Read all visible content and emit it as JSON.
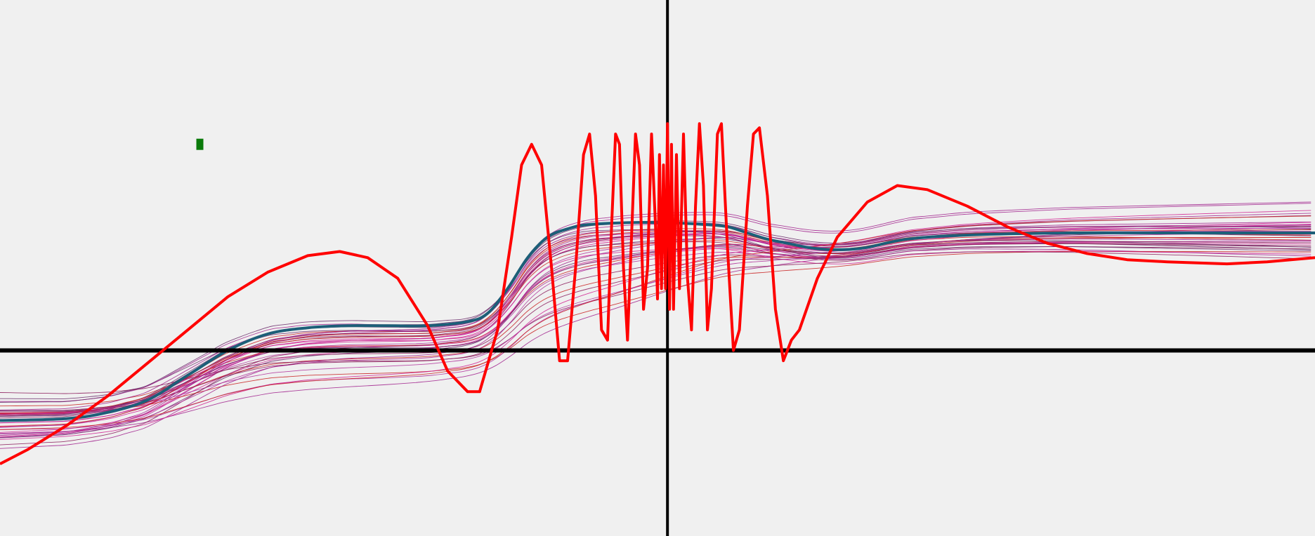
{
  "chart_data": {
    "type": "line",
    "title": "",
    "xlabel": "",
    "ylabel": "",
    "xlim": [
      -3.34,
      3.24
    ],
    "ylim": [
      -0.9,
      1.7
    ],
    "grid": false,
    "axes": {
      "color": "#000000",
      "x_axis_at": 0,
      "y_axis_at": 0
    },
    "marker": {
      "color": "#0a7a0a",
      "x": -2.34,
      "y": 1.0
    },
    "background": "#f0f0f0",
    "series": [
      {
        "role": "oscillating-function",
        "color": "#ff0000",
        "points": [
          [
            -3.34,
            -0.55
          ],
          [
            -3.2,
            -0.48
          ],
          [
            -3.0,
            -0.36
          ],
          [
            -2.8,
            -0.22
          ],
          [
            -2.6,
            -0.06
          ],
          [
            -2.4,
            0.1
          ],
          [
            -2.2,
            0.26
          ],
          [
            -2.0,
            0.38
          ],
          [
            -1.8,
            0.46
          ],
          [
            -1.64,
            0.48
          ],
          [
            -1.5,
            0.45
          ],
          [
            -1.35,
            0.35
          ],
          [
            -1.2,
            0.12
          ],
          [
            -1.1,
            -0.1
          ],
          [
            -1.0,
            -0.2
          ],
          [
            -0.94,
            -0.2
          ],
          [
            -0.85,
            0.1
          ],
          [
            -0.78,
            0.55
          ],
          [
            -0.73,
            0.9
          ],
          [
            -0.68,
            1.0
          ],
          [
            -0.63,
            0.9
          ],
          [
            -0.58,
            0.4
          ],
          [
            -0.54,
            -0.05
          ],
          [
            -0.5,
            -0.05
          ],
          [
            -0.46,
            0.4
          ],
          [
            -0.42,
            0.95
          ],
          [
            -0.39,
            1.05
          ],
          [
            -0.36,
            0.75
          ],
          [
            -0.33,
            0.1
          ],
          [
            -0.3,
            0.05
          ],
          [
            -0.28,
            0.6
          ],
          [
            -0.26,
            1.05
          ],
          [
            -0.24,
            1.0
          ],
          [
            -0.22,
            0.4
          ],
          [
            -0.2,
            0.05
          ],
          [
            -0.18,
            0.55
          ],
          [
            -0.16,
            1.05
          ],
          [
            -0.14,
            0.9
          ],
          [
            -0.12,
            0.2
          ],
          [
            -0.1,
            0.4
          ],
          [
            -0.08,
            1.05
          ],
          [
            -0.06,
            0.6
          ],
          [
            -0.05,
            0.25
          ],
          [
            -0.04,
            0.95
          ],
          [
            -0.03,
            0.3
          ],
          [
            -0.02,
            0.9
          ],
          [
            -0.01,
            0.3
          ],
          [
            0.0,
            1.1
          ],
          [
            0.01,
            0.2
          ],
          [
            0.02,
            1.0
          ],
          [
            0.03,
            0.2
          ],
          [
            0.045,
            0.95
          ],
          [
            0.06,
            0.3
          ],
          [
            0.08,
            1.05
          ],
          [
            0.1,
            0.35
          ],
          [
            0.12,
            0.1
          ],
          [
            0.14,
            0.7
          ],
          [
            0.16,
            1.1
          ],
          [
            0.18,
            0.8
          ],
          [
            0.2,
            0.1
          ],
          [
            0.22,
            0.3
          ],
          [
            0.25,
            1.05
          ],
          [
            0.27,
            1.1
          ],
          [
            0.3,
            0.5
          ],
          [
            0.33,
            0.0
          ],
          [
            0.36,
            0.1
          ],
          [
            0.4,
            0.7
          ],
          [
            0.43,
            1.05
          ],
          [
            0.46,
            1.08
          ],
          [
            0.5,
            0.75
          ],
          [
            0.54,
            0.2
          ],
          [
            0.58,
            -0.05
          ],
          [
            0.62,
            0.05
          ],
          [
            0.66,
            0.1
          ],
          [
            0.75,
            0.35
          ],
          [
            0.85,
            0.55
          ],
          [
            1.0,
            0.72
          ],
          [
            1.15,
            0.8
          ],
          [
            1.3,
            0.78
          ],
          [
            1.5,
            0.7
          ],
          [
            1.7,
            0.6
          ],
          [
            1.9,
            0.52
          ],
          [
            2.1,
            0.47
          ],
          [
            2.3,
            0.44
          ],
          [
            2.5,
            0.43
          ],
          [
            2.8,
            0.42
          ],
          [
            3.0,
            0.43
          ],
          [
            3.24,
            0.45
          ]
        ]
      },
      {
        "role": "mean-fit",
        "color": "#1c5f78",
        "points": [
          [
            -3.34,
            -0.34
          ],
          [
            -3.0,
            -0.33
          ],
          [
            -2.8,
            -0.3
          ],
          [
            -2.6,
            -0.24
          ],
          [
            -2.4,
            -0.12
          ],
          [
            -2.2,
            0.0
          ],
          [
            -2.0,
            0.08
          ],
          [
            -1.8,
            0.11
          ],
          [
            -1.6,
            0.12
          ],
          [
            -1.4,
            0.12
          ],
          [
            -1.2,
            0.12
          ],
          [
            -1.0,
            0.14
          ],
          [
            -0.9,
            0.18
          ],
          [
            -0.8,
            0.3
          ],
          [
            -0.7,
            0.45
          ],
          [
            -0.6,
            0.55
          ],
          [
            -0.5,
            0.59
          ],
          [
            -0.4,
            0.61
          ],
          [
            -0.2,
            0.62
          ],
          [
            0.0,
            0.62
          ],
          [
            0.2,
            0.61
          ],
          [
            0.3,
            0.6
          ],
          [
            0.4,
            0.57
          ],
          [
            0.5,
            0.54
          ],
          [
            0.6,
            0.52
          ],
          [
            0.7,
            0.5
          ],
          [
            0.8,
            0.49
          ],
          [
            0.9,
            0.49
          ],
          [
            1.0,
            0.5
          ],
          [
            1.2,
            0.54
          ],
          [
            1.5,
            0.56
          ],
          [
            2.0,
            0.57
          ],
          [
            2.5,
            0.57
          ],
          [
            3.24,
            0.57
          ]
        ]
      },
      {
        "role": "sample-fits",
        "colors": [
          "#a0208c",
          "#d02090",
          "#8b1a5a",
          "#c81e1e",
          "#6a2a6a",
          "#b0309a"
        ],
        "count": 40
      }
    ]
  }
}
